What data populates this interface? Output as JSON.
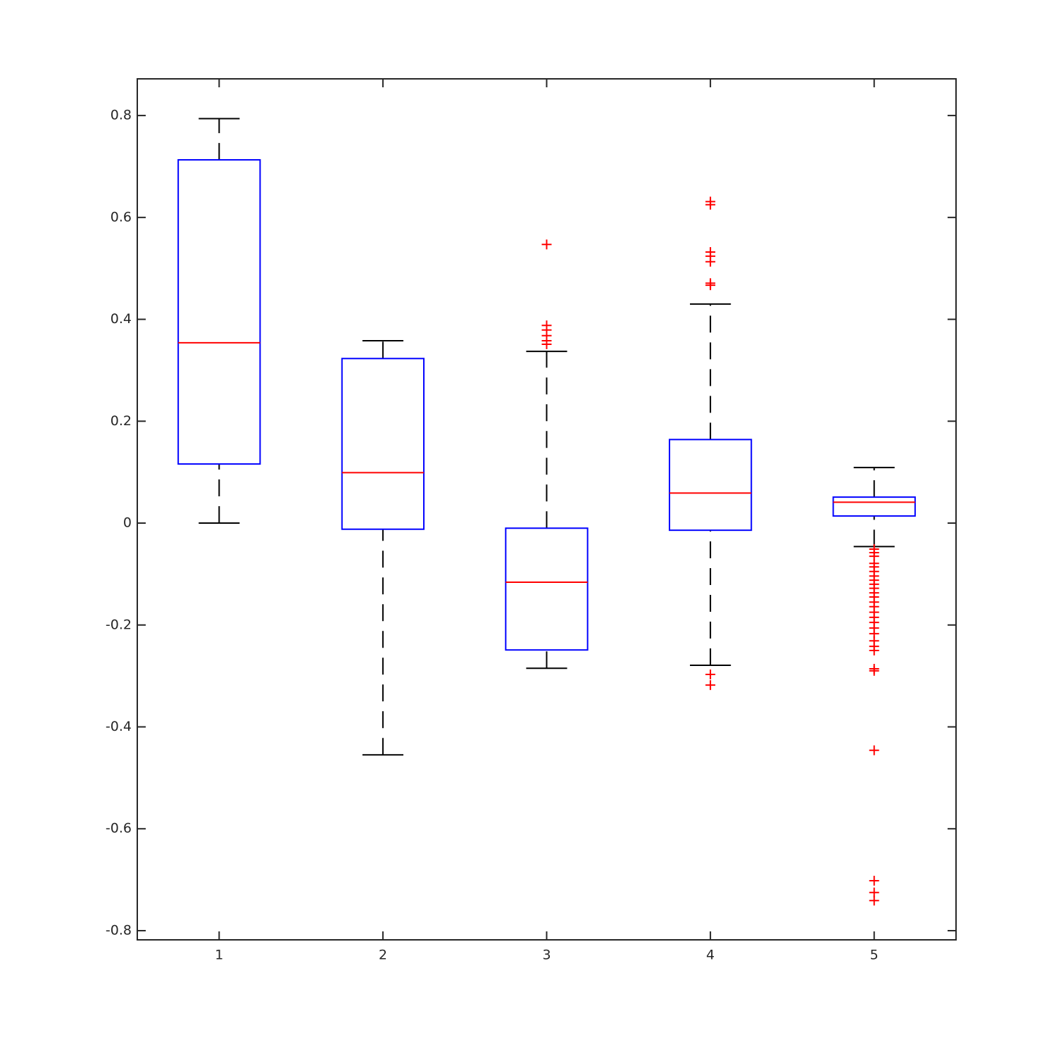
{
  "chart_data": {
    "type": "box",
    "categories": [
      "1",
      "2",
      "3",
      "4",
      "5"
    ],
    "xlim": [
      0.5,
      5.5
    ],
    "ylim": [
      -0.818,
      0.872
    ],
    "yticks": [
      0.8,
      0.6,
      0.4,
      0.2,
      0,
      -0.2,
      -0.4,
      -0.6,
      -0.8
    ],
    "box_color": "#0000ff",
    "median_color": "#ff0000",
    "whisker_color": "#000000",
    "outlier_color": "#ff0000",
    "boxes": [
      {
        "whisker_low": 0,
        "q1": 0.116,
        "median": 0.354,
        "q3": 0.713,
        "whisker_high": 0.794,
        "outliers": []
      },
      {
        "whisker_low": -0.455,
        "q1": -0.012,
        "median": 0.099,
        "q3": 0.323,
        "whisker_high": 0.358,
        "outliers": []
      },
      {
        "whisker_low": -0.285,
        "q1": -0.249,
        "median": -0.116,
        "q3": -0.01,
        "whisker_high": 0.337,
        "outliers": [
          0.547,
          0.388,
          0.379,
          0.368,
          0.358,
          0.351
        ]
      },
      {
        "whisker_low": -0.279,
        "q1": -0.014,
        "median": 0.059,
        "q3": 0.164,
        "whisker_high": 0.43,
        "outliers": [
          0.631,
          0.625,
          0.532,
          0.524,
          0.513,
          0.471,
          0.467,
          -0.297,
          -0.318
        ]
      },
      {
        "whisker_low": -0.046,
        "q1": 0.014,
        "median": 0.041,
        "q3": 0.051,
        "whisker_high": 0.109,
        "outliers": [
          -0.051,
          -0.058,
          -0.065,
          -0.079,
          -0.086,
          -0.095,
          -0.104,
          -0.112,
          -0.12,
          -0.128,
          -0.137,
          -0.145,
          -0.155,
          -0.164,
          -0.175,
          -0.185,
          -0.195,
          -0.206,
          -0.217,
          -0.231,
          -0.242,
          -0.25,
          -0.286,
          -0.29,
          -0.446,
          -0.702,
          -0.725,
          -0.741
        ]
      }
    ]
  }
}
